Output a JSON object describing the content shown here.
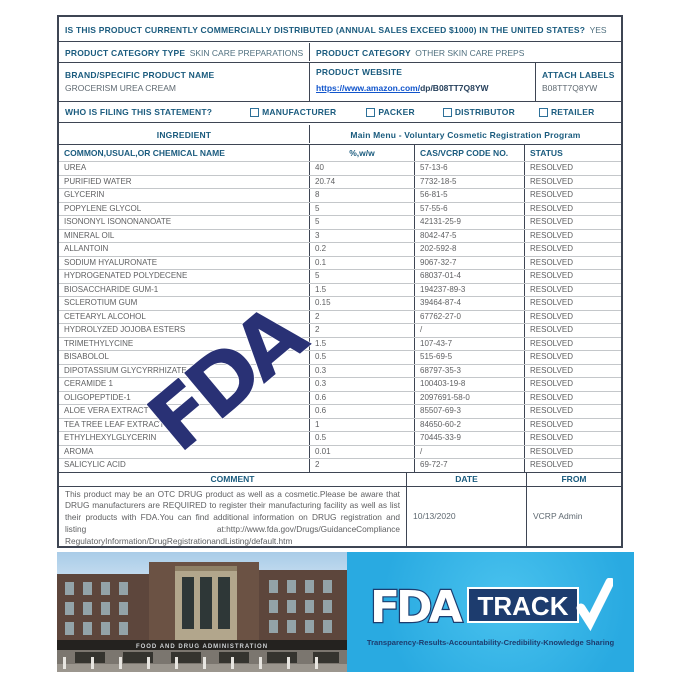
{
  "question": {
    "label": "IS THIS PRODUCT CURRENTLY COMMERCIALLY DISTRIBUTED (ANNUAL SALES EXCEED $1000) IN THE UNITED STATES?",
    "answer": "YES"
  },
  "product": {
    "category_type_label": "PRODUCT CATEGORY TYPE",
    "category_type_value": "SKIN CARE PREPARATIONS",
    "category_label": "PRODUCT CATEGORY",
    "category_value": "OTHER SKIN CARE PREPS",
    "brand_label": "BRAND/SPECIFIC PRODUCT NAME",
    "brand_value": "GROCERISM UREA CREAM",
    "website_label": "PRODUCT WEBSITE",
    "website_link": "https://www.amazon.com/",
    "website_path": "dp/B08TT7Q8YW",
    "attach_labels_label": "ATTACH LABELS",
    "attach_labels_value": "B08TT7Q8YW"
  },
  "filing": {
    "question": "WHO IS FILING THIS STATEMENT?",
    "options": [
      "MANUFACTURER",
      "PACKER",
      "DISTRIBUTOR",
      "RETAILER"
    ]
  },
  "ingredients": {
    "section_label": "INGREDIENT",
    "section_title": "Main Menu - Voluntary Cosmetic Registration Program",
    "columns": [
      "COMMON,USUAL,OR CHEMICAL NAME",
      "%,w/w",
      "CAS/VCRP CODE NO.",
      "STATUS"
    ],
    "rows": [
      {
        "name": "UREA",
        "pct": "40",
        "cas": "57-13-6",
        "status": "RESOLVED"
      },
      {
        "name": "PURIFIED WATER",
        "pct": "20.74",
        "cas": "7732-18-5",
        "status": "RESOLVED"
      },
      {
        "name": "GLYCERIN",
        "pct": "8",
        "cas": "56-81-5",
        "status": "RESOLVED"
      },
      {
        "name": "POPYLENE GLYCOL",
        "pct": "5",
        "cas": "57-55-6",
        "status": "RESOLVED"
      },
      {
        "name": "ISONONYL ISONONANOATE",
        "pct": "5",
        "cas": "42131-25-9",
        "status": "RESOLVED"
      },
      {
        "name": "MINERAL OIL",
        "pct": "3",
        "cas": "8042-47-5",
        "status": "RESOLVED"
      },
      {
        "name": "ALLANTOIN",
        "pct": "0.2",
        "cas": "202-592-8",
        "status": "RESOLVED"
      },
      {
        "name": "SODIUM HYALURONATE",
        "pct": "0.1",
        "cas": "9067-32-7",
        "status": "RESOLVED"
      },
      {
        "name": "HYDROGENATED POLYDECENE",
        "pct": "5",
        "cas": "68037-01-4",
        "status": "RESOLVED"
      },
      {
        "name": "BIOSACCHARIDE GUM-1",
        "pct": "1.5",
        "cas": "194237-89-3",
        "status": "RESOLVED"
      },
      {
        "name": "SCLEROTIUM GUM",
        "pct": "0.15",
        "cas": "39464-87-4",
        "status": "RESOLVED"
      },
      {
        "name": "CETEARYL ALCOHOL",
        "pct": "2",
        "cas": "67762-27-0",
        "status": "RESOLVED"
      },
      {
        "name": "HYDROLYZED JOJOBA ESTERS",
        "pct": "2",
        "cas": "/",
        "status": "RESOLVED"
      },
      {
        "name": "TRIMETHYLYCINE",
        "pct": "1.5",
        "cas": "107-43-7",
        "status": "RESOLVED"
      },
      {
        "name": "BISABOLOL",
        "pct": "0.5",
        "cas": "515-69-5",
        "status": "RESOLVED"
      },
      {
        "name": "DIPOTASSIUM GLYCYRRHIZATE",
        "pct": "0.3",
        "cas": "68797-35-3",
        "status": "RESOLVED"
      },
      {
        "name": "CERAMIDE 1",
        "pct": "0.3",
        "cas": "100403-19-8",
        "status": "RESOLVED"
      },
      {
        "name": "OLIGOPEPTIDE-1",
        "pct": "0.6",
        "cas": "2097691-58-0",
        "status": "RESOLVED"
      },
      {
        "name": "ALOE VERA EXTRACT",
        "pct": "0.6",
        "cas": "85507-69-3",
        "status": "RESOLVED"
      },
      {
        "name": "TEA TREE LEAF EXTRACT",
        "pct": "1",
        "cas": "84650-60-2",
        "status": "RESOLVED"
      },
      {
        "name": "ETHYLHEXYLGLYCERIN",
        "pct": "0.5",
        "cas": "70445-33-9",
        "status": "RESOLVED"
      },
      {
        "name": "AROMA",
        "pct": "0.01",
        "cas": "/",
        "status": "RESOLVED"
      },
      {
        "name": "SALICYLIC ACID",
        "pct": "2",
        "cas": "69-72-7",
        "status": "RESOLVED"
      }
    ]
  },
  "comment": {
    "comment_header": "COMMENT",
    "date_header": "DATE",
    "from_header": "FROM",
    "text": "This product may be an OTC DRUG product as well as a cosmetic.Please be aware that DRUG manufacturers are REQUIRED to register their manufacturing facility as well as list their products with FDA.You can find additional information on DRUG registration and listing at:http://www.fda.gov/Drugs/GuidanceCompliance RegulatoryInformation/DrugRegistrationandListing/default.htm",
    "date": "10/13/2020",
    "from": "VCRP Admin"
  },
  "watermark": "FDA",
  "footer": {
    "building_sign": "FOOD AND DRUG ADMINISTRATION",
    "fda_text": "FDA",
    "track_text": "TRACK",
    "tagline": "Transparency-Results-Accountability-Credibility-Knowledge Sharing"
  },
  "colors": {
    "label_teal": "#1a5b7e",
    "data_gray": "#5f6062",
    "border_dark": "#3e4553",
    "border_light": "#c4c7ca",
    "link_blue": "#1155cc",
    "watermark_navy": "#293175",
    "track_cyan": "#29aae1",
    "track_navy": "#1d3c6e"
  }
}
